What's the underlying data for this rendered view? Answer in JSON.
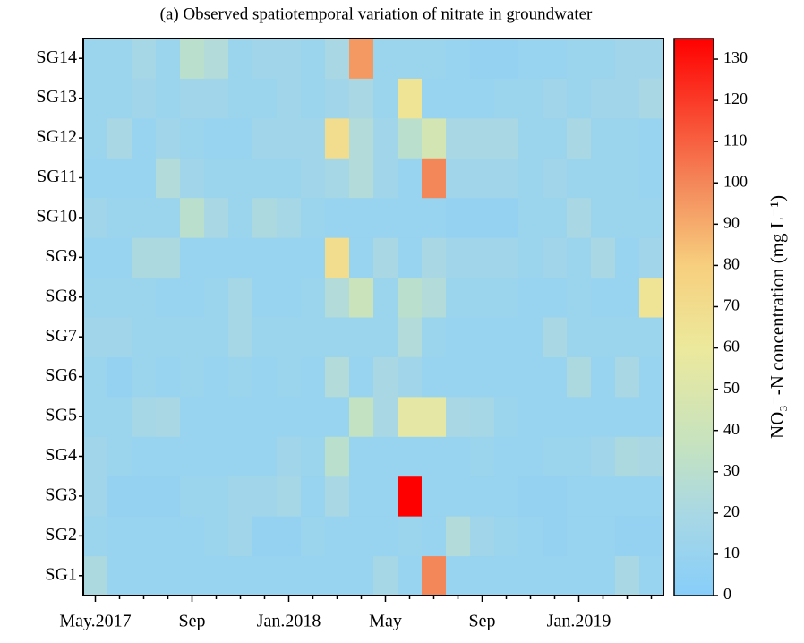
{
  "chart_data": {
    "type": "heatmap",
    "title": "(a) Observed spatiotemporal variation of nitrate in groundwater",
    "categories": [
      "May.2017",
      null,
      null,
      null,
      "Sep",
      null,
      null,
      null,
      "Jan.2018",
      null,
      null,
      null,
      "May",
      null,
      null,
      null,
      "Sep",
      null,
      null,
      null,
      "Jan.2019",
      null,
      null,
      null
    ],
    "rows": [
      "SG1",
      "SG2",
      "SG3",
      "SG4",
      "SG5",
      "SG6",
      "SG7",
      "SG8",
      "SG9",
      "SG10",
      "SG11",
      "SG12",
      "SG13",
      "SG14"
    ],
    "values": [
      [
        22,
        10,
        10,
        10,
        10,
        10,
        10,
        10,
        10,
        10,
        10,
        10,
        18,
        10,
        100,
        10,
        10,
        10,
        10,
        10,
        10,
        10,
        20,
        10
      ],
      [
        12,
        10,
        10,
        10,
        10,
        12,
        15,
        8,
        8,
        12,
        10,
        10,
        10,
        12,
        10,
        25,
        15,
        12,
        10,
        8,
        10,
        10,
        8,
        8
      ],
      [
        15,
        8,
        8,
        8,
        12,
        12,
        15,
        15,
        18,
        10,
        20,
        10,
        10,
        135,
        10,
        10,
        10,
        10,
        8,
        8,
        10,
        10,
        10,
        10
      ],
      [
        15,
        12,
        10,
        10,
        10,
        10,
        10,
        10,
        15,
        12,
        30,
        10,
        10,
        10,
        10,
        10,
        12,
        10,
        10,
        12,
        12,
        15,
        22,
        20
      ],
      [
        12,
        12,
        18,
        20,
        10,
        10,
        10,
        10,
        10,
        10,
        10,
        35,
        20,
        55,
        55,
        20,
        18,
        12,
        10,
        10,
        10,
        10,
        10,
        10
      ],
      [
        12,
        8,
        12,
        10,
        12,
        10,
        12,
        10,
        12,
        10,
        25,
        10,
        20,
        15,
        10,
        10,
        10,
        10,
        10,
        10,
        22,
        10,
        20,
        10
      ],
      [
        15,
        15,
        12,
        12,
        12,
        12,
        18,
        12,
        12,
        12,
        12,
        12,
        12,
        25,
        12,
        10,
        10,
        10,
        10,
        20,
        12,
        12,
        12,
        12
      ],
      [
        12,
        12,
        12,
        10,
        10,
        12,
        18,
        10,
        10,
        12,
        25,
        40,
        12,
        30,
        25,
        12,
        12,
        12,
        10,
        10,
        12,
        10,
        10,
        65
      ],
      [
        10,
        10,
        22,
        22,
        10,
        10,
        10,
        10,
        10,
        10,
        70,
        10,
        20,
        10,
        20,
        15,
        15,
        15,
        12,
        15,
        12,
        20,
        10,
        15
      ],
      [
        15,
        12,
        12,
        12,
        30,
        20,
        12,
        22,
        18,
        12,
        10,
        10,
        10,
        10,
        10,
        8,
        8,
        8,
        12,
        12,
        20,
        12,
        12,
        12
      ],
      [
        10,
        10,
        10,
        25,
        15,
        12,
        12,
        12,
        12,
        15,
        18,
        25,
        15,
        10,
        100,
        15,
        15,
        15,
        12,
        15,
        12,
        12,
        12,
        10
      ],
      [
        12,
        20,
        10,
        15,
        12,
        10,
        10,
        15,
        15,
        15,
        70,
        25,
        15,
        30,
        45,
        20,
        20,
        20,
        12,
        12,
        20,
        12,
        12,
        10
      ],
      [
        12,
        12,
        15,
        12,
        15,
        15,
        12,
        12,
        15,
        12,
        15,
        20,
        12,
        65,
        10,
        10,
        10,
        12,
        12,
        15,
        12,
        15,
        15,
        20
      ],
      [
        12,
        12,
        18,
        12,
        30,
        25,
        12,
        15,
        15,
        12,
        20,
        95,
        12,
        12,
        12,
        10,
        8,
        8,
        10,
        10,
        12,
        12,
        15,
        15
      ]
    ],
    "colorbar_label": "NO₃⁻-N concentration (mg L⁻¹)",
    "clim": [
      0,
      135
    ],
    "cticks": [
      0,
      10,
      20,
      30,
      40,
      50,
      60,
      70,
      80,
      90,
      100,
      110,
      120,
      130
    ],
    "colormap": [
      [
        0,
        "#87cefa"
      ],
      [
        20,
        "#a9d8e4"
      ],
      [
        35,
        "#c3e2c2"
      ],
      [
        60,
        "#ece99c"
      ],
      [
        80,
        "#f7cf7e"
      ],
      [
        100,
        "#f4875a"
      ],
      [
        135,
        "#ff0000"
      ]
    ]
  }
}
